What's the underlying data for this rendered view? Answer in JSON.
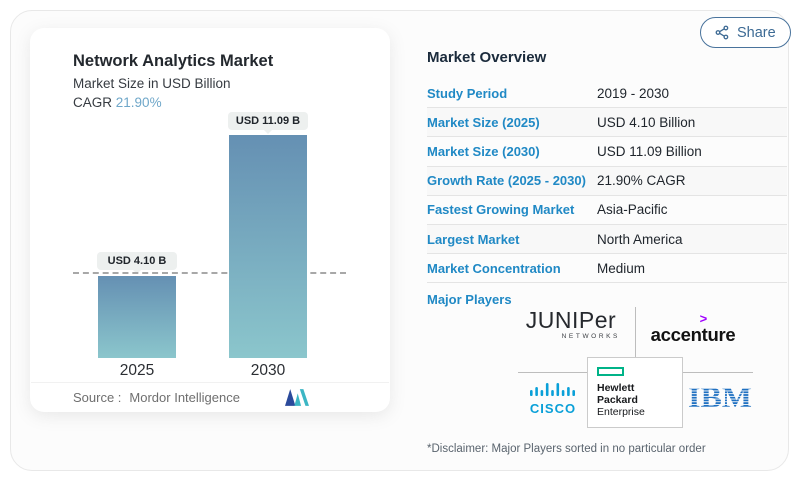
{
  "share_button": {
    "label": "Share"
  },
  "chart": {
    "title": "Network Analytics Market",
    "subtitle": "Market Size in USD Billion",
    "cagr_label": "CAGR",
    "cagr_value": "21.90%",
    "bar_tags": [
      "USD 4.10 B",
      "USD 11.09 B"
    ],
    "years": [
      "2025",
      "2030"
    ],
    "source_prefix": "Source :",
    "source_name": "Mordor Intelligence"
  },
  "chart_data": {
    "type": "bar",
    "title": "Network Analytics Market",
    "subtitle": "Market Size in USD Billion",
    "categories": [
      "2025",
      "2030"
    ],
    "values": [
      4.1,
      11.09
    ],
    "value_labels": [
      "USD 4.10 B",
      "USD 11.09 B"
    ],
    "unit": "USD Billion",
    "cagr": "21.90%",
    "ylim": [
      0,
      11.09
    ],
    "grid": false,
    "dashed_reference_line": 4.1,
    "legend": "none",
    "source": "Mordor Intelligence"
  },
  "overview": {
    "heading": "Market Overview",
    "rows": [
      {
        "label": "Study Period",
        "value": "2019 - 2030"
      },
      {
        "label": "Market Size (2025)",
        "value": "USD 4.10 Billion"
      },
      {
        "label": "Market Size (2030)",
        "value": "USD 11.09 Billion"
      },
      {
        "label": "Growth Rate (2025 - 2030)",
        "value": "21.90% CAGR"
      },
      {
        "label": "Fastest Growing Market",
        "value": "Asia-Pacific"
      },
      {
        "label": "Largest Market",
        "value": "North America"
      },
      {
        "label": "Market Concentration",
        "value": "Medium"
      }
    ]
  },
  "players": {
    "label": "Major Players",
    "juniper_name": "JUNIPer",
    "juniper_sub": "NETWORKS",
    "accenture_mark": ">",
    "accenture_name": "accenture",
    "cisco_name": "CISCO",
    "hpe_line1": "Hewlett Packard",
    "hpe_line2": "Enterprise",
    "ibm_name": "IBM",
    "disclaimer": "*Disclaimer: Major Players sorted in no particular order"
  },
  "colors": {
    "accent_blue": "#2089c5",
    "bar_gradient_top": "#6590b3",
    "bar_gradient_bottom": "#8bc6cc",
    "cagr_value_blue": "#6fa7c9",
    "accenture_purple": "#a100ff",
    "hpe_green": "#00b388",
    "cisco_blue": "#0aa0d8",
    "ibm_blue": "#1f70c1",
    "mordor_navy": "#2b4a9b",
    "mordor_teal": "#3cb6c4"
  }
}
